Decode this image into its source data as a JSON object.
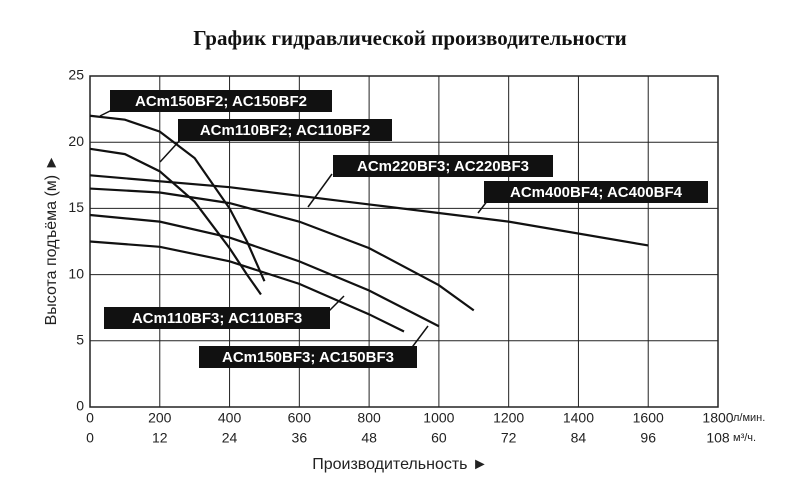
{
  "chart_data": {
    "type": "line",
    "title": "График гидравлической производительности",
    "x_label": "Производительность ►",
    "y_label": "Высота подъёма (м) ►",
    "x_unit": "л/мин.",
    "x2_unit": "м³/ч.",
    "xlim": [
      0,
      1800
    ],
    "xticks": [
      0,
      200,
      400,
      600,
      800,
      1000,
      1200,
      1400,
      1600,
      1800
    ],
    "x2lim": [
      0,
      108
    ],
    "x2ticks": [
      0,
      12,
      24,
      36,
      48,
      60,
      72,
      84,
      96,
      108
    ],
    "ylim": [
      0,
      25
    ],
    "yticks": [
      0,
      5,
      10,
      15,
      20,
      25
    ],
    "grid": true,
    "series": [
      {
        "name": "ACm150BF2; AC150BF2",
        "color": "#111111",
        "x": [
          0,
          100,
          200,
          300,
          400,
          450,
          500
        ],
        "values": [
          22,
          21.7,
          20.8,
          18.8,
          15,
          12.5,
          9.5
        ]
      },
      {
        "name": "ACm110BF2; AC110BF2",
        "color": "#111111",
        "x": [
          0,
          100,
          200,
          300,
          400,
          450,
          490
        ],
        "values": [
          19.5,
          19.1,
          17.8,
          15.5,
          12,
          10,
          8.5
        ]
      },
      {
        "name": "ACm220BF3; AC220BF3",
        "color": "#111111",
        "x": [
          0,
          200,
          400,
          600,
          800,
          1000,
          1100
        ],
        "values": [
          16.5,
          16.2,
          15.4,
          14,
          12,
          9.2,
          7.3
        ]
      },
      {
        "name": "ACm400BF4; AC400BF4",
        "color": "#111111",
        "x": [
          0,
          400,
          800,
          1200,
          1600
        ],
        "values": [
          17.5,
          16.6,
          15.3,
          14,
          12.2
        ]
      },
      {
        "name": "ACm110BF3; AC110BF3",
        "color": "#111111",
        "x": [
          0,
          200,
          400,
          600,
          800,
          900
        ],
        "values": [
          12.5,
          12.1,
          11,
          9.3,
          7,
          5.7
        ]
      },
      {
        "name": "ACm150BF3; AC150BF3",
        "color": "#111111",
        "x": [
          0,
          200,
          400,
          600,
          800,
          1000
        ],
        "values": [
          14.5,
          14,
          12.8,
          11,
          8.8,
          6.1
        ]
      }
    ]
  }
}
